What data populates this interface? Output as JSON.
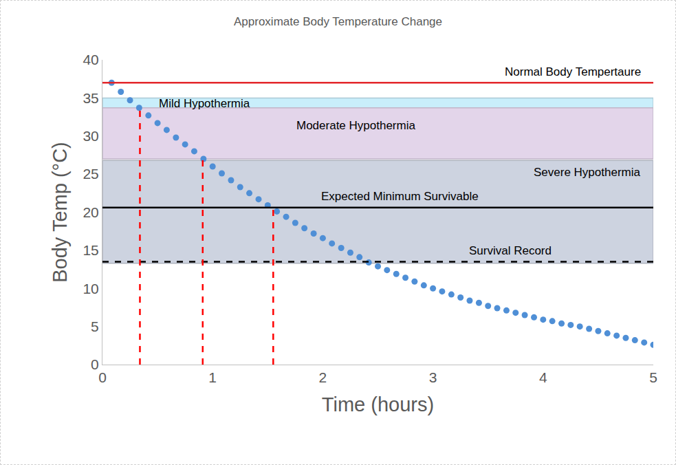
{
  "chart_data": {
    "type": "scatter",
    "title": "Approximate Body Temperature Change",
    "x_label": "Time (hours)",
    "y_label": "Body Temp (°C)",
    "x": [
      0.083,
      0.167,
      0.25,
      0.333,
      0.417,
      0.5,
      0.583,
      0.667,
      0.75,
      0.833,
      0.917,
      1.0,
      1.083,
      1.167,
      1.25,
      1.333,
      1.417,
      1.5,
      1.583,
      1.667,
      1.75,
      1.833,
      1.917,
      2.0,
      2.083,
      2.167,
      2.25,
      2.333,
      2.417,
      2.5,
      2.583,
      2.667,
      2.75,
      2.833,
      2.917,
      3.0,
      3.083,
      3.167,
      3.25,
      3.333,
      3.417,
      3.5,
      3.583,
      3.667,
      3.75,
      3.833,
      3.917,
      4.0,
      4.083,
      4.167,
      4.25,
      4.333,
      4.417,
      4.5,
      4.583,
      4.667,
      4.75,
      4.833,
      4.917,
      5.0
    ],
    "values": [
      37.0,
      35.8,
      34.7,
      33.7,
      32.7,
      31.7,
      30.8,
      29.8,
      28.9,
      28.0,
      27.0,
      26.0,
      25.1,
      24.2,
      23.3,
      22.5,
      21.7,
      20.9,
      20.1,
      19.4,
      18.6,
      17.9,
      17.2,
      16.6,
      15.9,
      15.3,
      14.7,
      14.1,
      13.4,
      12.9,
      12.4,
      11.9,
      11.4,
      10.9,
      10.4,
      10.0,
      9.6,
      9.2,
      8.8,
      8.4,
      8.1,
      7.7,
      7.4,
      7.1,
      6.8,
      6.5,
      6.2,
      5.9,
      5.7,
      5.4,
      5.2,
      5.0,
      4.7,
      4.4,
      4.1,
      3.8,
      3.5,
      3.2,
      2.9,
      2.6
    ],
    "color": "#4f8fd6",
    "marker": "circle",
    "xlim": [
      0,
      5
    ],
    "xticks": [
      0,
      1,
      2,
      3,
      4,
      5
    ],
    "ylim": [
      0,
      40
    ],
    "yticks": [
      0,
      5,
      10,
      15,
      20,
      25,
      30,
      35,
      40
    ],
    "grid": false,
    "bands": [
      {
        "label": "Mild Hypothermia",
        "from": 33.7,
        "to": 35,
        "color": "#c9eefb"
      },
      {
        "label": "Moderate Hypothermia",
        "from": 27,
        "to": 33.7,
        "color": "#e3d5ea"
      },
      {
        "label": "Severe Hypothermia",
        "from": 13.3,
        "to": 26.8,
        "color": "#cdd3e0"
      }
    ],
    "reference_lines": [
      {
        "label": "Normal Body Tempertaure",
        "value": 37,
        "color": "#e3262b",
        "line_style": "solid"
      },
      {
        "label": "Expected Minimum Survivable",
        "value": 20.6,
        "color": "#000000",
        "line_style": "solid"
      },
      {
        "label": "Survival Record",
        "value": 13.5,
        "color": "#000000",
        "line_style": "dash"
      }
    ],
    "drop_lines": {
      "color": "#ff0000",
      "line_style": "dash",
      "x": [
        0.34,
        0.91,
        1.55
      ],
      "y": [
        33.7,
        27,
        20.6
      ]
    }
  }
}
